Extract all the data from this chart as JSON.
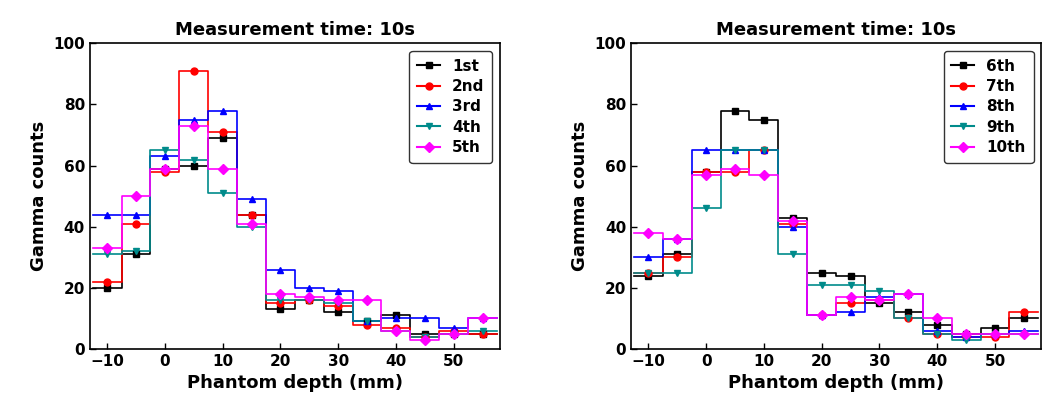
{
  "title": "Measurement time: 10s",
  "xlabel": "Phantom depth (mm)",
  "ylabel": "Gamma counts",
  "xlim": [
    -13,
    58
  ],
  "ylim": [
    0,
    100
  ],
  "xticks": [
    -10,
    0,
    10,
    20,
    30,
    40,
    50
  ],
  "yticks": [
    0,
    20,
    40,
    60,
    80,
    100
  ],
  "bin_edges": [
    -12.5,
    -7.5,
    -2.5,
    2.5,
    7.5,
    12.5,
    17.5,
    22.5,
    27.5,
    32.5,
    37.5,
    42.5,
    47.5,
    52.5,
    57.5
  ],
  "bin_centers": [
    -10,
    -5,
    0,
    5,
    10,
    15,
    20,
    25,
    30,
    35,
    40,
    45,
    50,
    55
  ],
  "series_left": [
    {
      "label": "1st",
      "color": "#000000",
      "marker": "s",
      "values": [
        20,
        31,
        59,
        60,
        69,
        44,
        13,
        16,
        12,
        9,
        11,
        5,
        5,
        5
      ]
    },
    {
      "label": "2nd",
      "color": "#ff0000",
      "marker": "o",
      "values": [
        22,
        41,
        58,
        91,
        71,
        44,
        15,
        16,
        14,
        8,
        7,
        4,
        6,
        5
      ]
    },
    {
      "label": "3rd",
      "color": "#0000ff",
      "marker": "^",
      "values": [
        44,
        44,
        63,
        75,
        78,
        49,
        26,
        20,
        19,
        9,
        10,
        10,
        7,
        10
      ]
    },
    {
      "label": "4th",
      "color": "#008B8B",
      "marker": "v",
      "values": [
        31,
        32,
        65,
        62,
        51,
        40,
        16,
        16,
        15,
        9,
        6,
        4,
        5,
        6
      ]
    },
    {
      "label": "5th",
      "color": "#ff00ff",
      "marker": "D",
      "values": [
        33,
        50,
        59,
        73,
        59,
        41,
        18,
        17,
        16,
        16,
        6,
        3,
        5,
        10
      ]
    }
  ],
  "series_right": [
    {
      "label": "6th",
      "color": "#000000",
      "marker": "s",
      "values": [
        24,
        31,
        58,
        78,
        75,
        43,
        25,
        24,
        15,
        12,
        8,
        5,
        7,
        10
      ]
    },
    {
      "label": "7th",
      "color": "#ff0000",
      "marker": "o",
      "values": [
        25,
        30,
        58,
        58,
        65,
        41,
        11,
        15,
        16,
        10,
        5,
        4,
        4,
        12
      ]
    },
    {
      "label": "8th",
      "color": "#0000ff",
      "marker": "^",
      "values": [
        30,
        36,
        65,
        65,
        65,
        40,
        11,
        12,
        17,
        18,
        6,
        4,
        5,
        6
      ]
    },
    {
      "label": "9th",
      "color": "#008B8B",
      "marker": "v",
      "values": [
        25,
        25,
        46,
        65,
        65,
        31,
        21,
        21,
        19,
        10,
        5,
        3,
        5,
        5
      ]
    },
    {
      "label": "10th",
      "color": "#ff00ff",
      "marker": "D",
      "values": [
        38,
        36,
        57,
        59,
        57,
        42,
        11,
        17,
        16,
        18,
        10,
        5,
        5,
        5
      ]
    }
  ]
}
